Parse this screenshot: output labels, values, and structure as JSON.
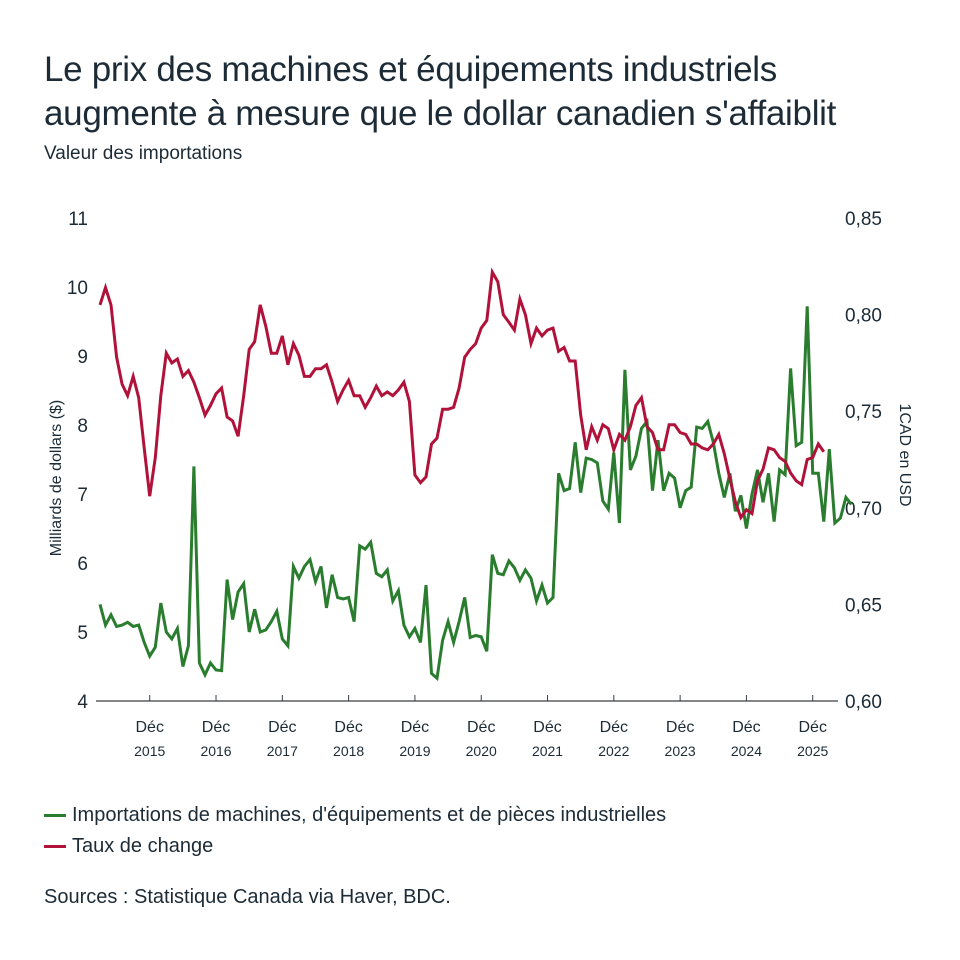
{
  "header": {
    "title_line1": "Le prix des machines et équipements industriels",
    "title_line2": "augmente à mesure que le dollar canadien s'affaiblit",
    "subtitle": "Valeur des importations"
  },
  "legend": [
    {
      "label": "Importations de machines, d'équipements et de pièces industrielles",
      "color": "#2a7d2e"
    },
    {
      "label": "Taux de change",
      "color": "#b0123a"
    }
  ],
  "source": "Sources : Statistique Canada via Haver, BDC.",
  "chart_data": {
    "type": "line",
    "title": "Le prix des machines et équipements industriels augmente à mesure que le dollar canadien s'affaiblit",
    "subtitle": "Valeur des importations",
    "x_start": "2015-03",
    "x_frequency": "monthly",
    "x_ticks": [
      {
        "month": "Déc",
        "year": "2015"
      },
      {
        "month": "Déc",
        "year": "2016"
      },
      {
        "month": "Déc",
        "year": "2017"
      },
      {
        "month": "Déc",
        "year": "2018"
      },
      {
        "month": "Déc",
        "year": "2019"
      },
      {
        "month": "Déc",
        "year": "2020"
      },
      {
        "month": "Déc",
        "year": "2021"
      },
      {
        "month": "Déc",
        "year": "2022"
      },
      {
        "month": "Déc",
        "year": "2023"
      },
      {
        "month": "Déc",
        "year": "2024"
      },
      {
        "month": "Déc",
        "year": "2025"
      }
    ],
    "y_left": {
      "label": "Milliards de dollars ($)",
      "range": [
        4,
        11
      ],
      "ticks": [
        "4",
        "5",
        "6",
        "7",
        "8",
        "9",
        "10",
        "11"
      ]
    },
    "y_right": {
      "label": "1CAD en USD",
      "range": [
        0.6,
        0.85
      ],
      "ticks": [
        "0,60",
        "0,65",
        "0,70",
        "0,75",
        "0,80",
        "0,85"
      ]
    },
    "grid": false,
    "legend_position": "bottom-left",
    "series": [
      {
        "name": "Importations de machines, d'équipements et de pièces industrielles",
        "axis": "left",
        "color": "#2a7d2e",
        "values": [
          5.4,
          5.1,
          5.25,
          5.08,
          5.1,
          5.14,
          5.08,
          5.1,
          4.85,
          4.65,
          4.78,
          5.42,
          5.0,
          4.9,
          5.05,
          4.5,
          4.8,
          7.4,
          4.55,
          4.38,
          4.55,
          4.45,
          4.44,
          5.76,
          5.18,
          5.58,
          5.7,
          5.0,
          5.33,
          5.0,
          5.03,
          5.15,
          5.3,
          4.9,
          4.8,
          5.95,
          5.78,
          5.95,
          6.05,
          5.73,
          5.95,
          5.35,
          5.83,
          5.5,
          5.48,
          5.5,
          5.15,
          6.25,
          6.2,
          6.3,
          5.85,
          5.8,
          5.9,
          5.45,
          5.6,
          5.1,
          4.93,
          5.05,
          4.85,
          5.68,
          4.4,
          4.33,
          4.88,
          5.15,
          4.85,
          5.15,
          5.5,
          4.92,
          4.95,
          4.93,
          4.72,
          6.12,
          5.85,
          5.83,
          6.03,
          5.93,
          5.75,
          5.9,
          5.78,
          5.45,
          5.68,
          5.42,
          5.5,
          7.3,
          7.05,
          7.08,
          7.75,
          7.02,
          7.52,
          7.5,
          7.45,
          6.9,
          6.78,
          7.6,
          6.58,
          8.8,
          7.35,
          7.55,
          7.95,
          8.05,
          7.05,
          7.78,
          7.05,
          7.3,
          7.23,
          6.8,
          7.05,
          7.1,
          7.97,
          7.95,
          8.05,
          7.75,
          7.3,
          6.95,
          7.3,
          6.75,
          6.98,
          6.5,
          7.0,
          7.35,
          6.88,
          7.3,
          6.6,
          7.35,
          7.28,
          8.82,
          7.7,
          7.75,
          9.72,
          7.3,
          7.3,
          6.6,
          7.65,
          6.58,
          6.65,
          6.95,
          6.85
        ]
      },
      {
        "name": "Taux de change",
        "axis": "right",
        "color": "#b0123a",
        "values": [
          0.805,
          0.814,
          0.805,
          0.778,
          0.764,
          0.758,
          0.768,
          0.757,
          0.731,
          0.706,
          0.726,
          0.758,
          0.78,
          0.775,
          0.777,
          0.768,
          0.771,
          0.765,
          0.757,
          0.748,
          0.753,
          0.759,
          0.762,
          0.747,
          0.745,
          0.737,
          0.758,
          0.782,
          0.786,
          0.805,
          0.794,
          0.78,
          0.78,
          0.789,
          0.774,
          0.785,
          0.779,
          0.768,
          0.768,
          0.772,
          0.772,
          0.774,
          0.765,
          0.755,
          0.761,
          0.766,
          0.758,
          0.758,
          0.752,
          0.757,
          0.763,
          0.758,
          0.76,
          0.758,
          0.761,
          0.765,
          0.755,
          0.717,
          0.713,
          0.716,
          0.733,
          0.736,
          0.751,
          0.751,
          0.752,
          0.762,
          0.778,
          0.782,
          0.785,
          0.793,
          0.797,
          0.822,
          0.817,
          0.8,
          0.796,
          0.792,
          0.808,
          0.8,
          0.785,
          0.793,
          0.789,
          0.792,
          0.793,
          0.781,
          0.783,
          0.776,
          0.776,
          0.748,
          0.73,
          0.742,
          0.735,
          0.743,
          0.741,
          0.73,
          0.738,
          0.735,
          0.742,
          0.753,
          0.757,
          0.742,
          0.739,
          0.73,
          0.73,
          0.743,
          0.743,
          0.739,
          0.738,
          0.733,
          0.733,
          0.731,
          0.73,
          0.733,
          0.738,
          0.728,
          0.715,
          0.703,
          0.695,
          0.699,
          0.697,
          0.714,
          0.72,
          0.731,
          0.73,
          0.726,
          0.724,
          0.718,
          0.714,
          0.712,
          0.725,
          0.726,
          0.733,
          0.729
        ]
      }
    ]
  }
}
